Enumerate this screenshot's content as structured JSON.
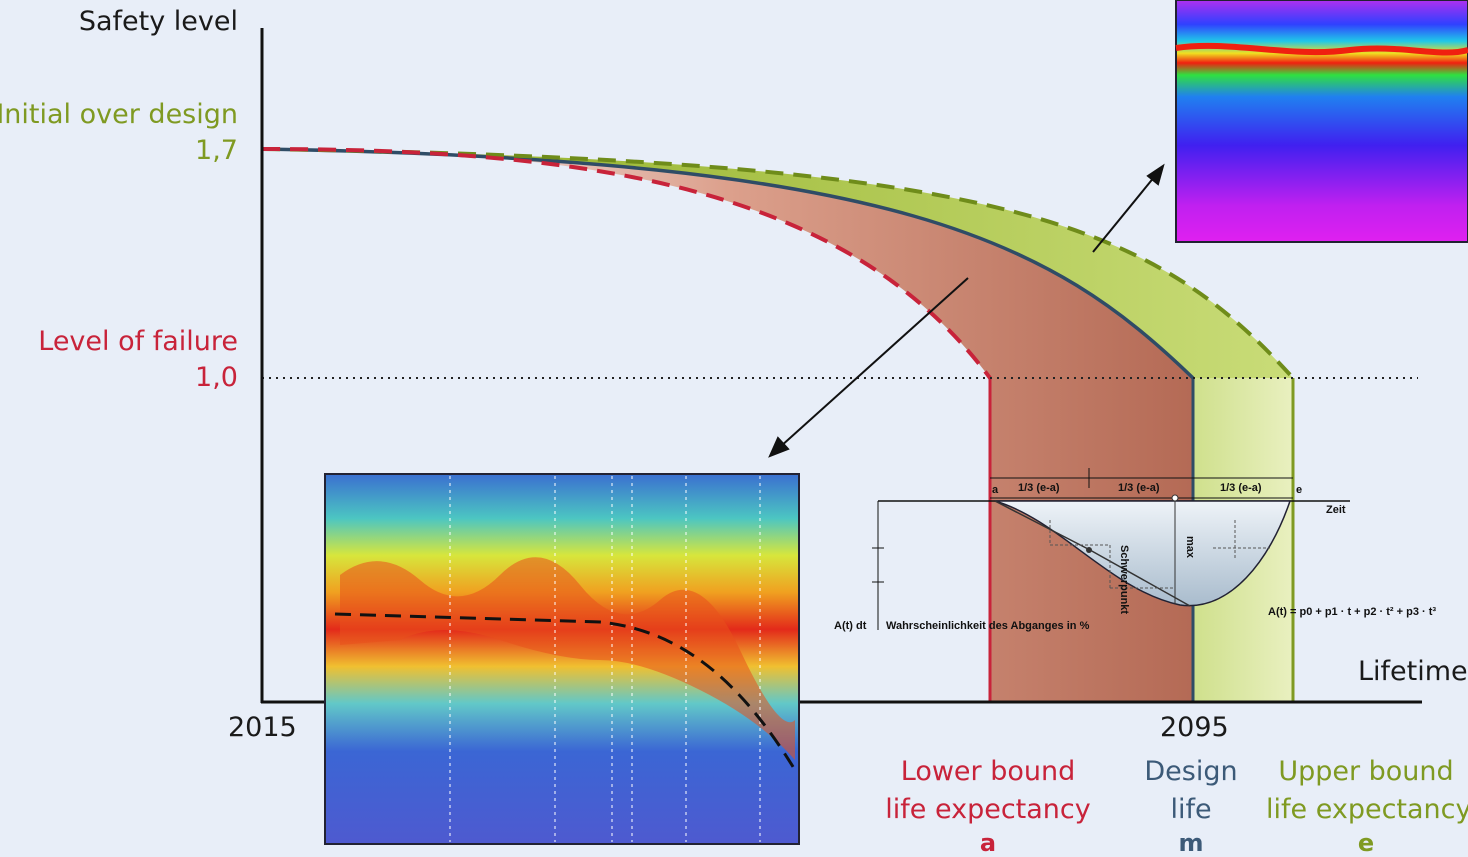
{
  "axis": {
    "y_title": "Safety level",
    "x_title": "Lifetime",
    "y_levels": [
      {
        "label": "Initial over design",
        "value": "1,7"
      },
      {
        "label": "Level of failure",
        "value": "1,0"
      }
    ],
    "x_ticks": [
      "2015",
      "2095"
    ]
  },
  "bounds": [
    {
      "line1": "Lower bound",
      "line2": "life expectancy",
      "letter": "a"
    },
    {
      "line1": "Design",
      "line2": "life",
      "letter": "m"
    },
    {
      "line1": "Upper bound",
      "line2": "life expectancy",
      "letter": "e"
    }
  ],
  "inset_distribution": {
    "markers": {
      "a": "a",
      "e": "e"
    },
    "segments": [
      "1/3 (e-a)",
      "1/3 (e-a)",
      "1/3 (e-a)"
    ],
    "zeit": "Zeit",
    "schwerpunkt": "Schwerpunkt",
    "max": "max",
    "ylabel_left": "A(t) dt",
    "ylabel_text": "Wahrscheinlichkeit des Abganges in %",
    "formula": "A(t) = p0 + p1 · t + p2 · t² + p3 · t³"
  },
  "colors": {
    "lower": "#c8233a",
    "design": "#2f4c66",
    "upper": "#7f9a22",
    "background": "#e8eef8"
  }
}
